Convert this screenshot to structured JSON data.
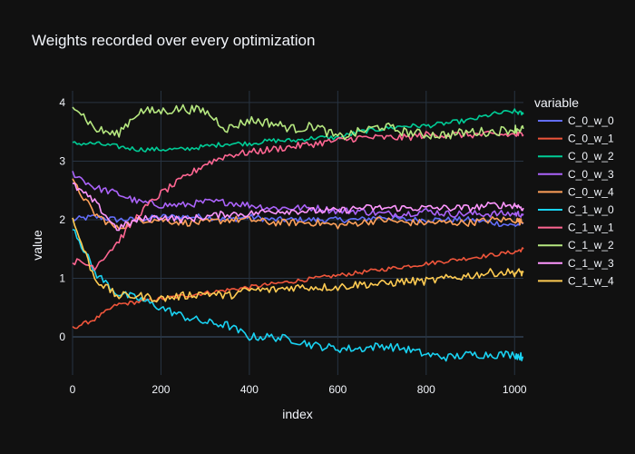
{
  "chart_data": {
    "type": "line",
    "title": "Weights recorded over every optimization",
    "xlabel": "index",
    "ylabel": "value",
    "legend_title": "variable",
    "legend_position": "right",
    "grid": true,
    "xlim": [
      0,
      1020
    ],
    "ylim": [
      -0.65,
      4.2
    ],
    "x_ticks": [
      0,
      200,
      400,
      600,
      800,
      1000
    ],
    "y_ticks": [
      0,
      1,
      2,
      3,
      4
    ],
    "colors": {
      "background": "#111111",
      "plot_background": "#111111",
      "grid": "#283442",
      "zero_line": "#283442",
      "text": "#f2f5fa"
    },
    "x": [
      0,
      50,
      100,
      150,
      200,
      250,
      300,
      350,
      400,
      450,
      500,
      550,
      600,
      650,
      700,
      750,
      800,
      850,
      900,
      950,
      1000,
      1020
    ],
    "series": [
      {
        "name": "C_0_w_0",
        "color": "#636efa",
        "values": [
          2.0,
          2.05,
          2.0,
          2.0,
          2.05,
          2.05,
          2.05,
          2.0,
          2.05,
          2.0,
          2.0,
          2.0,
          2.0,
          2.0,
          2.05,
          2.0,
          2.0,
          2.0,
          2.0,
          1.95,
          1.9,
          1.95
        ]
      },
      {
        "name": "C_0_w_1",
        "color": "#ef553b",
        "values": [
          0.15,
          0.3,
          0.55,
          0.6,
          0.65,
          0.7,
          0.75,
          0.8,
          0.85,
          0.9,
          0.95,
          1.0,
          1.05,
          1.1,
          1.15,
          1.2,
          1.25,
          1.3,
          1.35,
          1.4,
          1.45,
          1.5
        ]
      },
      {
        "name": "C_0_w_2",
        "color": "#00cc96",
        "values": [
          3.3,
          3.3,
          3.25,
          3.2,
          3.2,
          3.2,
          3.25,
          3.3,
          3.3,
          3.35,
          3.35,
          3.4,
          3.4,
          3.5,
          3.55,
          3.6,
          3.6,
          3.65,
          3.7,
          3.8,
          3.85,
          3.8
        ]
      },
      {
        "name": "C_0_w_3",
        "color": "#ab63fa",
        "values": [
          2.8,
          2.55,
          2.45,
          2.3,
          2.25,
          2.25,
          2.3,
          2.3,
          2.25,
          2.2,
          2.2,
          2.2,
          2.15,
          2.15,
          2.1,
          2.1,
          2.15,
          2.1,
          2.1,
          2.1,
          2.1,
          2.1
        ]
      },
      {
        "name": "C_0_w_4",
        "color": "#ffa15a",
        "values": [
          2.65,
          2.1,
          1.85,
          2.0,
          2.0,
          1.95,
          1.95,
          2.0,
          2.0,
          1.95,
          1.95,
          1.95,
          1.9,
          1.95,
          2.0,
          1.95,
          1.95,
          1.95,
          1.95,
          2.0,
          2.0,
          1.95
        ]
      },
      {
        "name": "C_1_w_0",
        "color": "#19d3f3",
        "values": [
          1.9,
          1.1,
          0.75,
          0.65,
          0.5,
          0.35,
          0.25,
          0.2,
          0.0,
          0.0,
          -0.05,
          -0.15,
          -0.2,
          -0.2,
          -0.15,
          -0.2,
          -0.3,
          -0.35,
          -0.3,
          -0.3,
          -0.3,
          -0.35
        ]
      },
      {
        "name": "C_1_w_1",
        "color": "#ff6692",
        "values": [
          1.3,
          1.2,
          1.6,
          2.1,
          2.45,
          2.7,
          2.95,
          3.1,
          3.15,
          3.2,
          3.25,
          3.3,
          3.35,
          3.4,
          3.4,
          3.4,
          3.45,
          3.45,
          3.45,
          3.45,
          3.45,
          3.45
        ]
      },
      {
        "name": "C_1_w_2",
        "color": "#b6e880",
        "values": [
          4.0,
          3.55,
          3.45,
          3.85,
          3.85,
          3.9,
          3.85,
          3.55,
          3.7,
          3.65,
          3.55,
          3.6,
          3.4,
          3.5,
          3.6,
          3.5,
          3.45,
          3.45,
          3.5,
          3.5,
          3.55,
          3.55
        ]
      },
      {
        "name": "C_1_w_3",
        "color": "#ff97ff",
        "values": [
          2.6,
          2.3,
          1.85,
          2.0,
          2.05,
          2.0,
          2.05,
          2.1,
          2.1,
          2.15,
          2.15,
          2.15,
          2.15,
          2.2,
          2.2,
          2.2,
          2.2,
          2.2,
          2.2,
          2.25,
          2.25,
          2.2
        ]
      },
      {
        "name": "C_1_w_4",
        "color": "#fecb52",
        "values": [
          2.0,
          1.0,
          0.7,
          0.7,
          0.65,
          0.7,
          0.75,
          0.7,
          0.8,
          0.8,
          0.85,
          0.85,
          0.85,
          0.9,
          0.9,
          0.95,
          0.95,
          1.0,
          1.05,
          1.1,
          1.1,
          1.1
        ]
      }
    ]
  }
}
